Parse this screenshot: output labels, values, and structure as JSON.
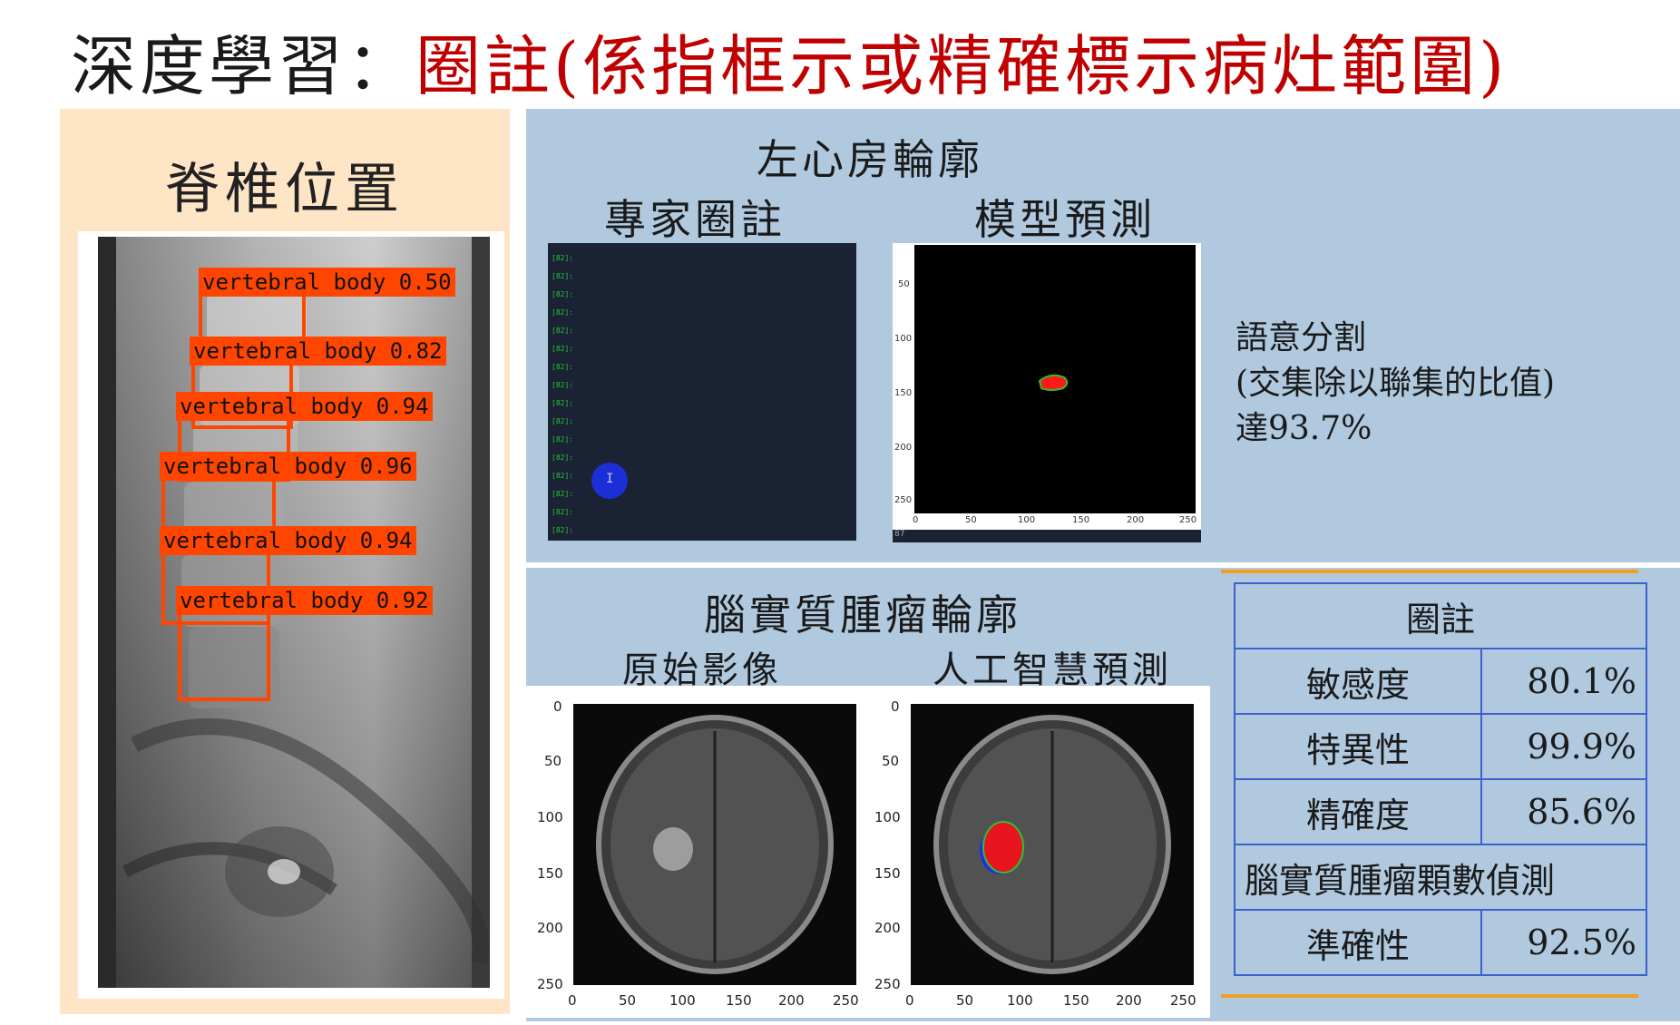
{
  "title": {
    "prefix": "深度學習：",
    "highlight": "圈註(",
    "explain": "係指框示或精確標示病灶範圍",
    "suffix": ")"
  },
  "spine": {
    "heading": "脊椎位置",
    "detections": [
      {
        "label": "vertebral body 0.50"
      },
      {
        "label": "vertebral body 0.82"
      },
      {
        "label": "vertebral body 0.94"
      },
      {
        "label": "vertebral body 0.96"
      },
      {
        "label": "vertebral body 0.94"
      },
      {
        "label": "vertebral body 0.92"
      }
    ]
  },
  "left_atrium": {
    "heading": "左心房輪廓",
    "expert_label": "專家圈註",
    "model_label": "模型預測",
    "terminal_line": "[82]:",
    "cursor_glyph": "I",
    "pred_yticks": [
      "50",
      "100",
      "150",
      "200",
      "250"
    ],
    "pred_xticks": [
      "0",
      "50",
      "100",
      "150",
      "200",
      "250"
    ],
    "status_text": "87",
    "stats_line1": "語意分割",
    "stats_line2": "(交集除以聯集的比值)",
    "stats_line3": "達93.7%"
  },
  "brain": {
    "heading": "腦實質腫瘤輪廓",
    "original_label": "原始影像",
    "ai_label": "人工智慧預測",
    "yticks": [
      "0",
      "50",
      "100",
      "150",
      "200",
      "250"
    ],
    "xticks": [
      "0",
      "50",
      "100",
      "150",
      "200",
      "250"
    ]
  },
  "metrics": {
    "header": "圈註",
    "rows": [
      {
        "name": "敏感度",
        "value": "80.1%"
      },
      {
        "name": "特異性",
        "value": "99.9%"
      },
      {
        "name": "精確度",
        "value": "85.6%"
      }
    ],
    "count_header": "腦實質腫瘤顆數偵測",
    "accuracy_name": "準確性",
    "accuracy_value": "92.5%"
  },
  "colors": {
    "title_red": "#c00000",
    "detection_orange": "#ff4500",
    "panel_blue": "#b0c9df",
    "panel_peach": "#fde5c6",
    "table_border": "#3e5fcf",
    "rule_orange": "#f0a020"
  }
}
